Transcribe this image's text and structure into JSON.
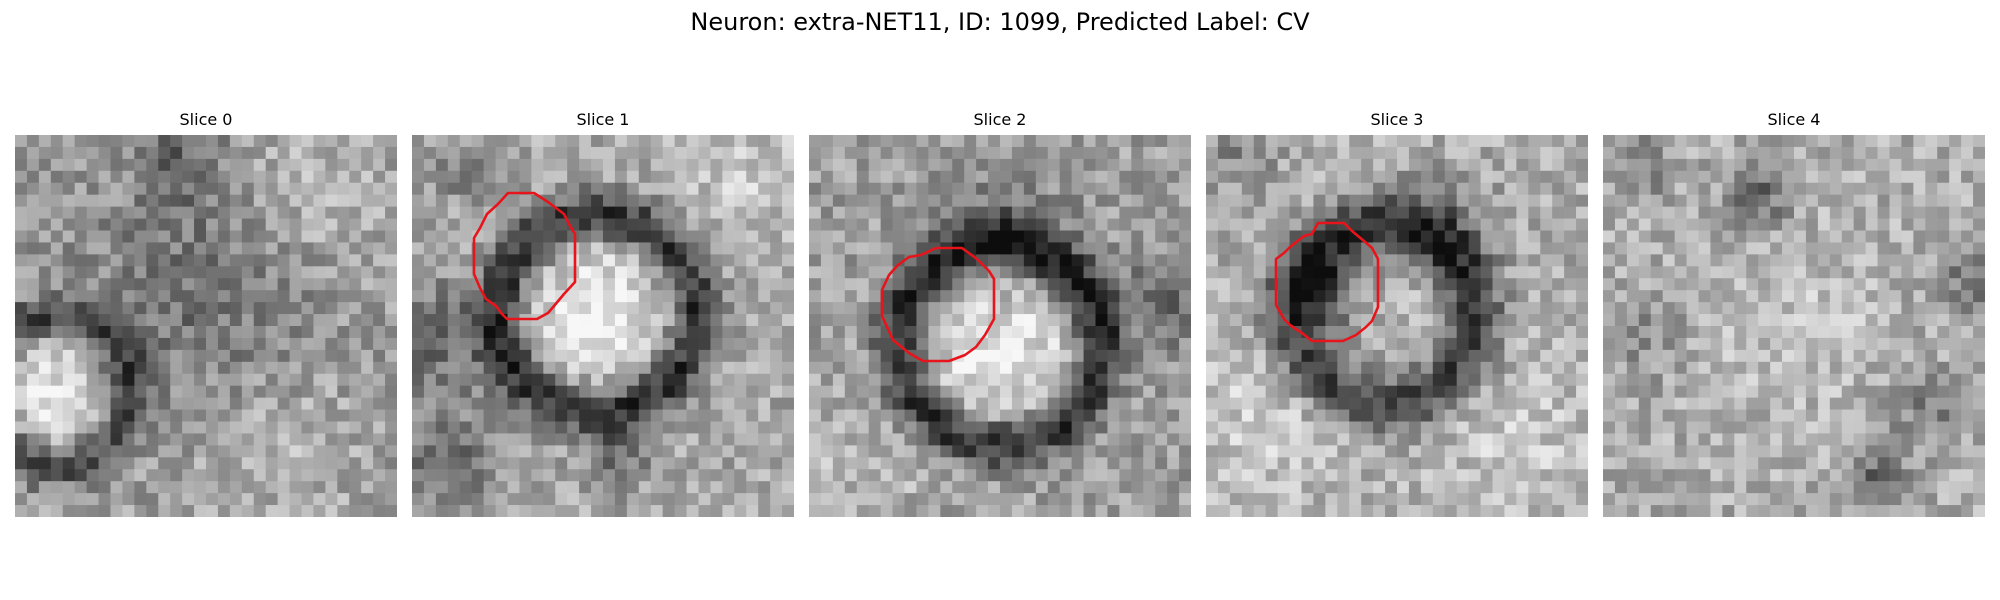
{
  "figure": {
    "title": "Neuron: extra-NET11, ID: 1099, Predicted Label: CV"
  },
  "panels": [
    {
      "label": "Slice 0",
      "has_contour": false
    },
    {
      "label": "Slice 1",
      "has_contour": true
    },
    {
      "label": "Slice 2",
      "has_contour": true
    },
    {
      "label": "Slice 3",
      "has_contour": true
    },
    {
      "label": "Slice 4",
      "has_contour": false
    }
  ],
  "colors": {
    "contour": "#e8141b",
    "background": "#ffffff"
  }
}
